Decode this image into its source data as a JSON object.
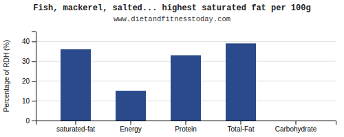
{
  "chart_data": {
    "type": "bar",
    "title": "Fish, mackerel, salted... highest saturated fat per 100g",
    "subtitle": "www.dietandfitnesstoday.com",
    "categories": [
      "saturated-fat",
      "Energy",
      "Protein",
      "Total-Fat",
      "Carbohydrate"
    ],
    "values": [
      36,
      15,
      33,
      39,
      0
    ],
    "color": "#2b4a8b",
    "ylabel": "Percentage of RDH (%)",
    "ylim": [
      0,
      45
    ],
    "yticks": [
      0,
      10,
      20,
      30,
      40
    ],
    "grid": true
  }
}
